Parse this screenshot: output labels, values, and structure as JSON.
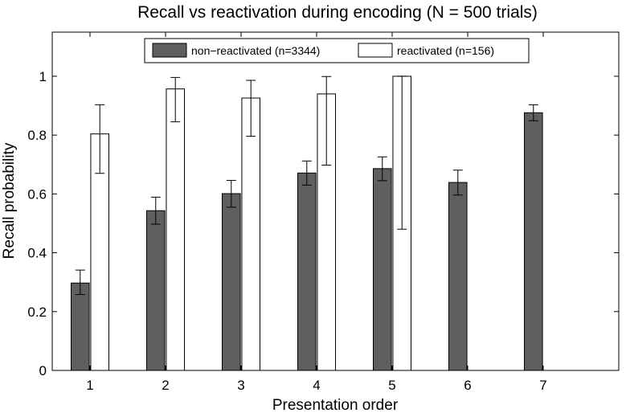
{
  "chart_data": {
    "type": "bar",
    "title": "Recall vs reactivation during encoding (N = 500 trials)",
    "xlabel": "Presentation order",
    "ylabel": "Recall probability",
    "categories": [
      "1",
      "2",
      "3",
      "4",
      "5",
      "6",
      "7"
    ],
    "ylim": [
      0,
      1.15
    ],
    "yticks": [
      "0",
      "0.2",
      "0.4",
      "0.6",
      "0.8",
      "1"
    ],
    "legend_position": "top",
    "grid": false,
    "series": [
      {
        "name": "non−reactivated (n=3344)",
        "color": "#5f5f5f",
        "values": [
          0.297,
          0.543,
          0.601,
          0.671,
          0.686,
          0.639,
          0.876
        ],
        "error_low": [
          0.258,
          0.497,
          0.555,
          0.63,
          0.645,
          0.596,
          0.849
        ],
        "error_high": [
          0.341,
          0.589,
          0.646,
          0.712,
          0.726,
          0.681,
          0.903
        ]
      },
      {
        "name": "reactivated (n=156)",
        "color": "#ffffff",
        "values": [
          0.804,
          0.957,
          0.926,
          0.94,
          1.0,
          null,
          null
        ],
        "error_low": [
          0.67,
          0.845,
          0.796,
          0.698,
          0.48,
          null,
          null
        ],
        "error_high": [
          0.903,
          0.996,
          0.986,
          0.999,
          1.0,
          null,
          null
        ]
      }
    ]
  }
}
